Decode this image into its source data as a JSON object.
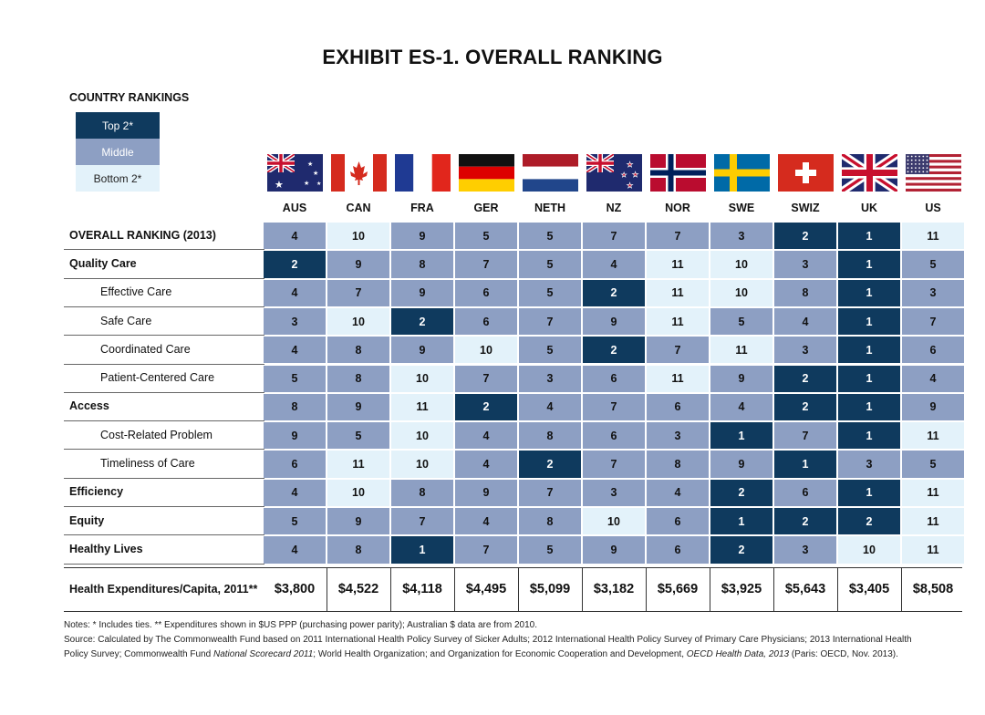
{
  "chart_data": {
    "type": "table",
    "title": "EXHIBIT ES-1. OVERALL RANKING",
    "legend": {
      "title": "COUNTRY RANKINGS",
      "items": [
        {
          "label": "Top 2*",
          "level": "top",
          "color": "#0f3a5e"
        },
        {
          "label": "Middle",
          "level": "mid",
          "color": "#8d9fc3"
        },
        {
          "label": "Bottom 2*",
          "level": "bot",
          "color": "#e3f2fa"
        }
      ]
    },
    "countries": [
      "AUS",
      "CAN",
      "FRA",
      "GER",
      "NETH",
      "NZ",
      "NOR",
      "SWE",
      "SWIZ",
      "UK",
      "US"
    ],
    "rows": [
      {
        "label": "OVERALL RANKING (2013)",
        "style": "bold",
        "values": [
          4,
          10,
          9,
          5,
          5,
          7,
          7,
          3,
          2,
          1,
          11
        ],
        "levels": [
          "mid",
          "bot",
          "mid",
          "mid",
          "mid",
          "mid",
          "mid",
          "mid",
          "top",
          "top",
          "bot"
        ]
      },
      {
        "label": "Quality Care",
        "style": "bold",
        "values": [
          2,
          9,
          8,
          7,
          5,
          4,
          11,
          10,
          3,
          1,
          5
        ],
        "levels": [
          "top",
          "mid",
          "mid",
          "mid",
          "mid",
          "mid",
          "bot",
          "bot",
          "mid",
          "top",
          "mid"
        ]
      },
      {
        "label": "Effective Care",
        "style": "sub",
        "values": [
          4,
          7,
          9,
          6,
          5,
          2,
          11,
          10,
          8,
          1,
          3
        ],
        "levels": [
          "mid",
          "mid",
          "mid",
          "mid",
          "mid",
          "top",
          "bot",
          "bot",
          "mid",
          "top",
          "mid"
        ]
      },
      {
        "label": "Safe Care",
        "style": "sub",
        "values": [
          3,
          10,
          2,
          6,
          7,
          9,
          11,
          5,
          4,
          1,
          7
        ],
        "levels": [
          "mid",
          "bot",
          "top",
          "mid",
          "mid",
          "mid",
          "bot",
          "mid",
          "mid",
          "top",
          "mid"
        ]
      },
      {
        "label": "Coordinated Care",
        "style": "sub",
        "values": [
          4,
          8,
          9,
          10,
          5,
          2,
          7,
          11,
          3,
          1,
          6
        ],
        "levels": [
          "mid",
          "mid",
          "mid",
          "bot",
          "mid",
          "top",
          "mid",
          "bot",
          "mid",
          "top",
          "mid"
        ]
      },
      {
        "label": "Patient-Centered Care",
        "style": "sub",
        "values": [
          5,
          8,
          10,
          7,
          3,
          6,
          11,
          9,
          2,
          1,
          4
        ],
        "levels": [
          "mid",
          "mid",
          "bot",
          "mid",
          "mid",
          "mid",
          "bot",
          "mid",
          "top",
          "top",
          "mid"
        ]
      },
      {
        "label": "Access",
        "style": "bold",
        "values": [
          8,
          9,
          11,
          2,
          4,
          7,
          6,
          4,
          2,
          1,
          9
        ],
        "levels": [
          "mid",
          "mid",
          "bot",
          "top",
          "mid",
          "mid",
          "mid",
          "mid",
          "top",
          "top",
          "mid"
        ]
      },
      {
        "label": "Cost-Related Problem",
        "style": "sub",
        "values": [
          9,
          5,
          10,
          4,
          8,
          6,
          3,
          1,
          7,
          1,
          11
        ],
        "levels": [
          "mid",
          "mid",
          "bot",
          "mid",
          "mid",
          "mid",
          "mid",
          "top",
          "mid",
          "top",
          "bot"
        ]
      },
      {
        "label": "Timeliness of Care",
        "style": "sub",
        "values": [
          6,
          11,
          10,
          4,
          2,
          7,
          8,
          9,
          1,
          3,
          5
        ],
        "levels": [
          "mid",
          "bot",
          "bot",
          "mid",
          "top",
          "mid",
          "mid",
          "mid",
          "top",
          "mid",
          "mid"
        ]
      },
      {
        "label": "Efficiency",
        "style": "bold",
        "values": [
          4,
          10,
          8,
          9,
          7,
          3,
          4,
          2,
          6,
          1,
          11
        ],
        "levels": [
          "mid",
          "bot",
          "mid",
          "mid",
          "mid",
          "mid",
          "mid",
          "top",
          "mid",
          "top",
          "bot"
        ]
      },
      {
        "label": "Equity",
        "style": "bold",
        "values": [
          5,
          9,
          7,
          4,
          8,
          10,
          6,
          1,
          2,
          2,
          11
        ],
        "levels": [
          "mid",
          "mid",
          "mid",
          "mid",
          "mid",
          "bot",
          "mid",
          "top",
          "top",
          "top",
          "bot"
        ]
      },
      {
        "label": "Healthy Lives",
        "style": "bold",
        "values": [
          4,
          8,
          1,
          7,
          5,
          9,
          6,
          2,
          3,
          10,
          11
        ],
        "levels": [
          "mid",
          "mid",
          "top",
          "mid",
          "mid",
          "mid",
          "mid",
          "top",
          "mid",
          "bot",
          "bot"
        ]
      }
    ],
    "expenditures": {
      "label": "Health Expenditures/Capita, 2011**",
      "values": [
        "$3,800",
        "$4,522",
        "$4,118",
        "$4,495",
        "$5,099",
        "$3,182",
        "$5,669",
        "$3,925",
        "$5,643",
        "$3,405",
        "$8,508"
      ]
    }
  },
  "flags": [
    "australia-flag",
    "canada-flag",
    "france-flag",
    "germany-flag",
    "netherlands-flag",
    "new-zealand-flag",
    "norway-flag",
    "sweden-flag",
    "switzerland-flag",
    "uk-flag",
    "us-flag"
  ],
  "notes": {
    "line1": "Notes: * Includes ties. ** Expenditures shown in $US PPP (purchasing power parity); Australian $ data are from 2010.",
    "line2": "Source: Calculated by The Commonwealth Fund based on 2011 International Health Policy Survey of Sicker Adults; 2012 International Health Policy Survey of Primary Care Physicians; 2013 International Health",
    "line3_a": "Policy Survey; Commonwealth Fund ",
    "line3_b": "National Scorecard 2011",
    "line3_c": "; World Health Organization; and Organization for Economic Cooperation and Development, ",
    "line3_d": "OECD Health Data, 2013",
    "line3_e": " (Paris: OECD, Nov. 2013)."
  }
}
